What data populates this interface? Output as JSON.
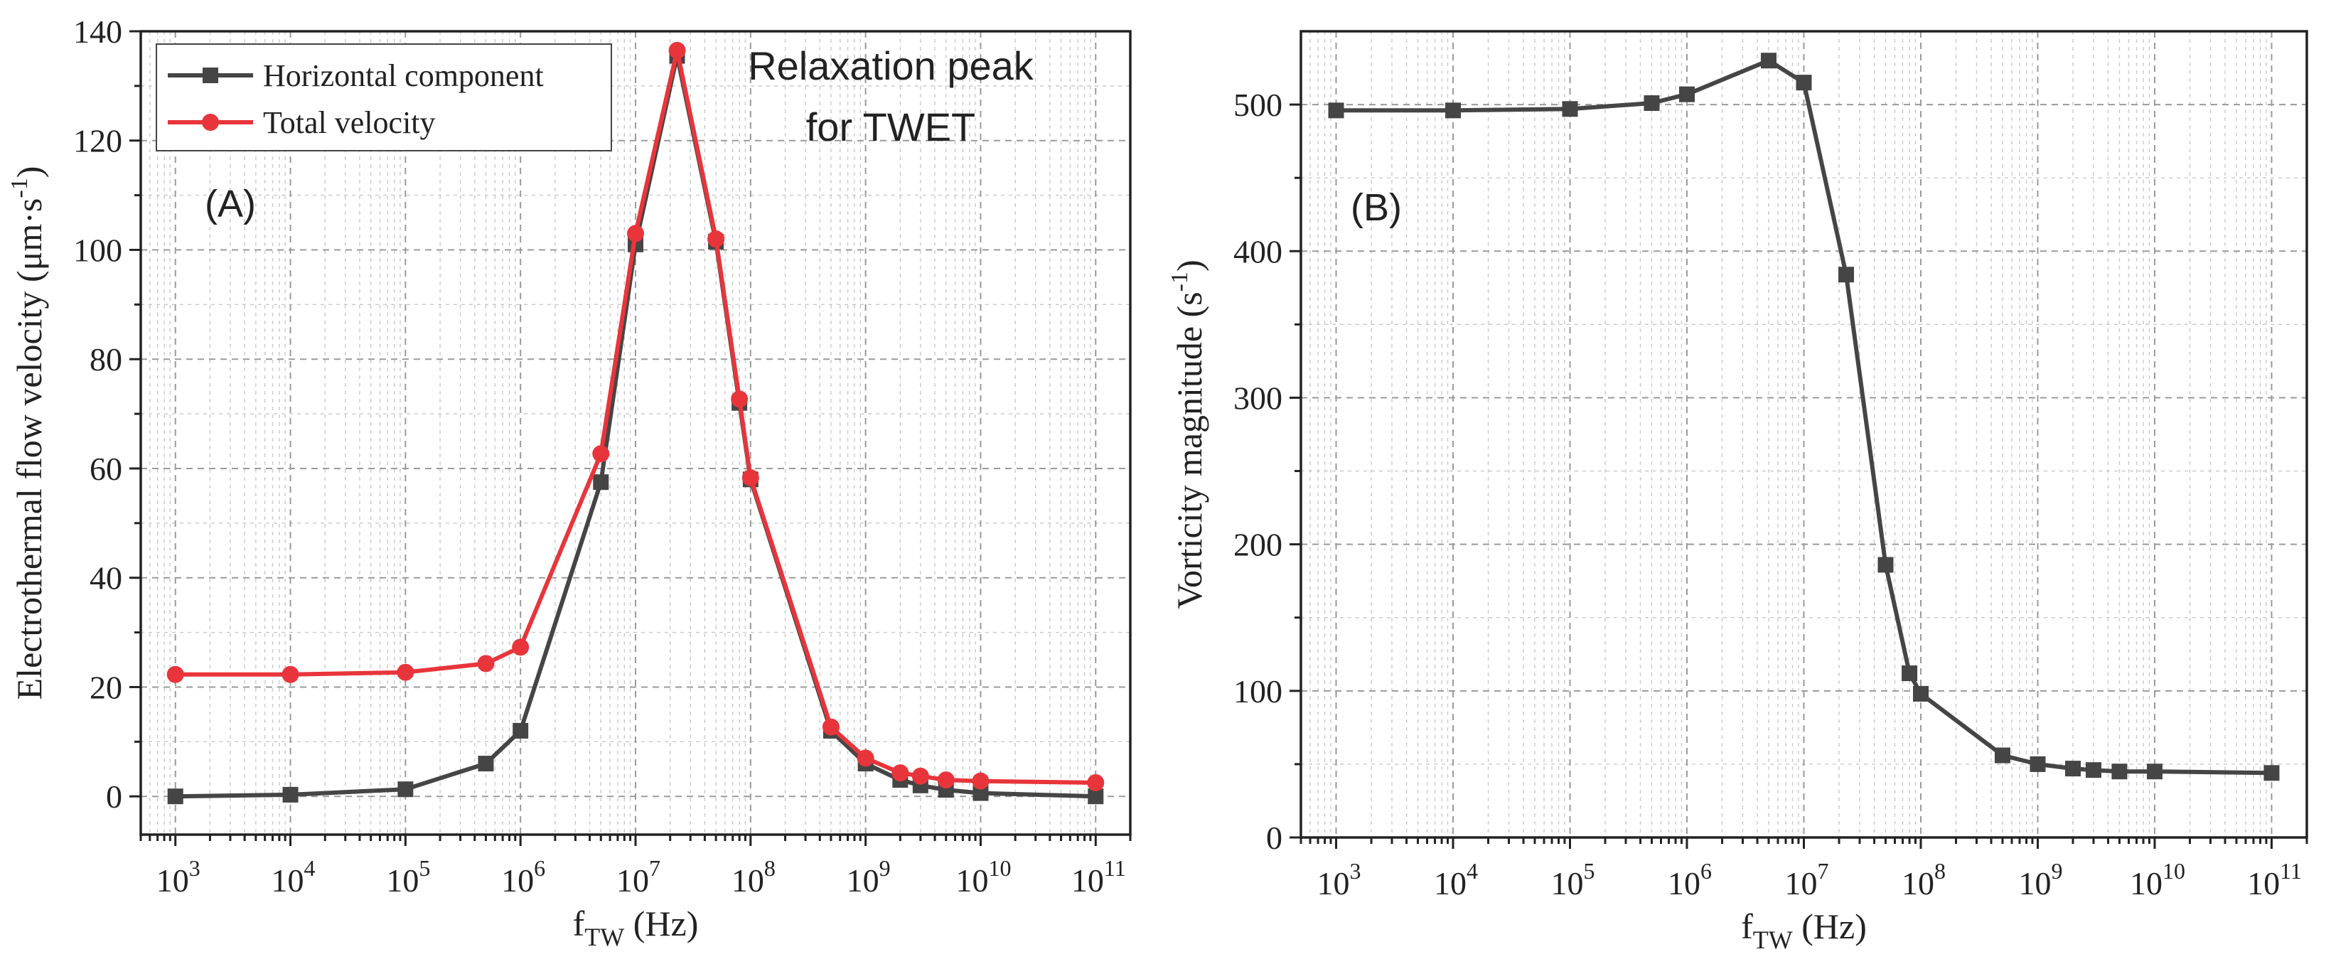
{
  "chart_data": [
    {
      "type": "line",
      "panel_label": "(A)",
      "xscale": "log",
      "xlim": [
        500,
        200000000000
      ],
      "ylim": [
        -7,
        140
      ],
      "yticks": [
        0,
        20,
        40,
        60,
        80,
        100,
        120,
        140
      ],
      "xtick_bases": [
        "10",
        "10",
        "10",
        "10",
        "10",
        "10",
        "10",
        "10",
        "10"
      ],
      "xtick_exponents": [
        "3",
        "4",
        "5",
        "6",
        "7",
        "8",
        "9",
        "10",
        "11"
      ],
      "xlabel_main": "f",
      "xlabel_sub": "TW",
      "xlabel_unit": " (Hz)",
      "ylabel_main": "Electrothermal flow velocity (μm·s",
      "ylabel_sup": "-1",
      "ylabel_close": ")",
      "annotation_lines": [
        "Relaxation peak",
        "for TWET"
      ],
      "legend": [
        "Horizontal component",
        "Total velocity"
      ],
      "series": [
        {
          "name": "Horizontal component",
          "color": "#454545",
          "marker": "square",
          "x": [
            1000,
            10000,
            100000,
            500000,
            1000000,
            5000000,
            10000000,
            23000000,
            50000000,
            80000000,
            100000000,
            500000000,
            1000000000,
            2000000000,
            3000000000,
            5000000000,
            10000000000,
            100000000000
          ],
          "y": [
            0,
            0.3,
            1.3,
            6,
            12,
            57.5,
            101,
            135.5,
            101.5,
            72,
            58,
            12,
            6,
            3,
            2,
            1.2,
            0.6,
            0
          ]
        },
        {
          "name": "Total velocity",
          "color": "#e8353b",
          "marker": "circle",
          "x": [
            1000,
            10000,
            100000,
            500000,
            1000000,
            5000000,
            10000000,
            23000000,
            50000000,
            80000000,
            100000000,
            500000000,
            1000000000,
            2000000000,
            3000000000,
            5000000000,
            10000000000,
            100000000000
          ],
          "y": [
            22.3,
            22.3,
            22.7,
            24.3,
            27.3,
            62.7,
            103,
            136.5,
            102,
            72.7,
            58.3,
            12.7,
            7,
            4.3,
            3.7,
            3,
            2.8,
            2.5
          ]
        }
      ]
    },
    {
      "type": "line",
      "panel_label": "(B)",
      "xscale": "log",
      "xlim": [
        500,
        200000000000
      ],
      "ylim": [
        0,
        550
      ],
      "yticks": [
        0,
        100,
        200,
        300,
        400,
        500
      ],
      "xtick_bases": [
        "10",
        "10",
        "10",
        "10",
        "10",
        "10",
        "10",
        "10",
        "10"
      ],
      "xtick_exponents": [
        "3",
        "4",
        "5",
        "6",
        "7",
        "8",
        "9",
        "10",
        "11"
      ],
      "xlabel_main": "f",
      "xlabel_sub": "TW",
      "xlabel_unit": " (Hz)",
      "ylabel_main": "Vorticity magnitude (s",
      "ylabel_sup": "-1",
      "ylabel_close": ")",
      "series": [
        {
          "name": "Vorticity magnitude",
          "color": "#454545",
          "marker": "square",
          "x": [
            1000,
            10000,
            100000,
            500000,
            1000000,
            5000000,
            10000000,
            23000000,
            50000000,
            80000000,
            100000000,
            500000000,
            1000000000,
            2000000000,
            3000000000,
            5000000000,
            10000000000,
            100000000000
          ],
          "y": [
            496,
            496,
            497,
            501,
            507,
            530,
            515,
            384,
            186,
            112,
            98,
            56,
            50,
            47,
            46,
            45,
            45,
            44
          ]
        }
      ]
    }
  ]
}
